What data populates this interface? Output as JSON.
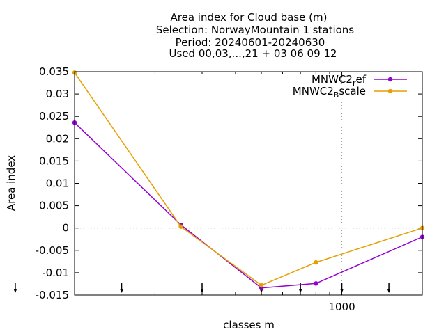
{
  "chart_data": {
    "type": "line",
    "title_lines": [
      "Area index  for Cloud base (m)",
      "Selection: NorwayMountain       1 stations",
      "Period: 20240601-20240630",
      "Used 00,03,...,21 + 03 06 09 12"
    ],
    "xlabel": "classes m",
    "ylabel": "Area index",
    "x_scale": "log",
    "x_tick_labels": [
      {
        "value": 1000,
        "label": "1000"
      }
    ],
    "y_ticks": [
      {
        "value": 0.035,
        "label": "0.035"
      },
      {
        "value": 0.03,
        "label": "0.03"
      },
      {
        "value": 0.025,
        "label": "0.025"
      },
      {
        "value": 0.02,
        "label": "0.02"
      },
      {
        "value": 0.015,
        "label": "0.015"
      },
      {
        "value": 0.01,
        "label": "0.01"
      },
      {
        "value": 0.005,
        "label": "0.005"
      },
      {
        "value": 0,
        "label": "0"
      },
      {
        "value": -0.005,
        "label": "-0.005"
      },
      {
        "value": -0.01,
        "label": "-0.01"
      },
      {
        "value": -0.015,
        "label": "-0.015"
      }
    ],
    "ylim": [
      -0.015,
      0.035
    ],
    "xlim": [
      100,
      2000
    ],
    "grid": "dotted at x=1000 and y=0",
    "legend_position": "top-right",
    "x": [
      100,
      250,
      500,
      800,
      2000
    ],
    "series": [
      {
        "name_main": "MNWC2",
        "name_sub": "r",
        "name_tail": "ef",
        "color": "#9400d3",
        "values": [
          0.0236,
          0.0007,
          -0.0134,
          -0.0124,
          -0.002
        ]
      },
      {
        "name_main": "MNWC2",
        "name_sub": "B",
        "name_tail": "scale",
        "color": "#e69f00",
        "values": [
          0.0348,
          0.0003,
          -0.0128,
          -0.0077,
          0.0
        ]
      }
    ],
    "arrow_markers_x": [
      60,
      150,
      300,
      500,
      700,
      1000,
      1500
    ]
  }
}
